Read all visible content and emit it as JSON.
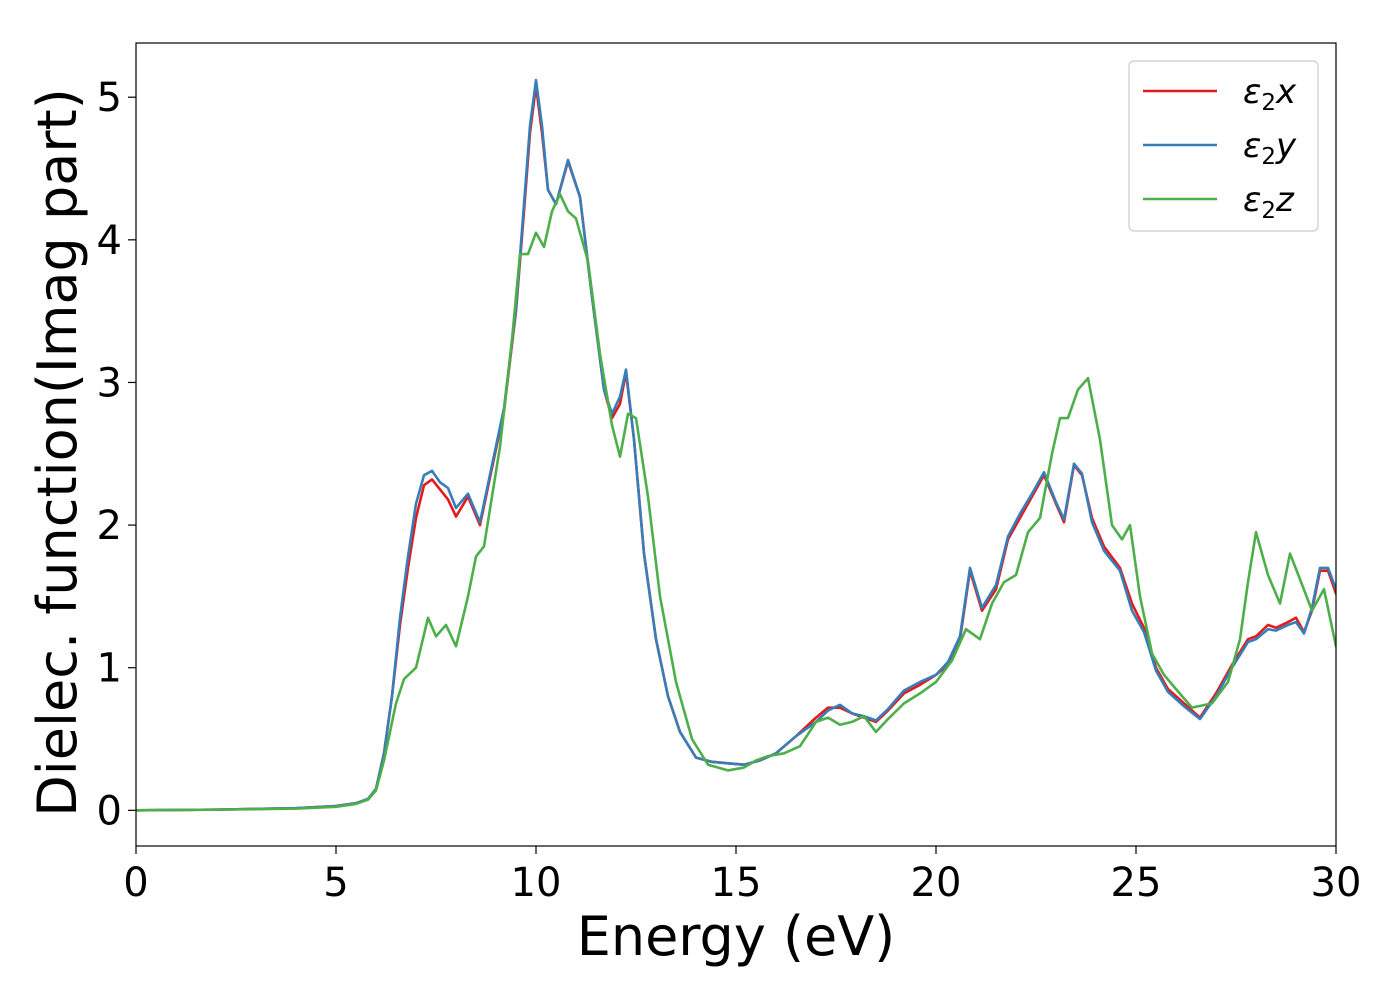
{
  "chart_data": {
    "type": "line",
    "title": "",
    "xlabel": "Energy (eV)",
    "ylabel": "Dielec. function(Imag part)",
    "xlim": [
      0,
      30
    ],
    "ylim": [
      -0.25,
      5.38
    ],
    "xticks": [
      0,
      5,
      10,
      15,
      20,
      25,
      30
    ],
    "yticks": [
      0,
      1,
      2,
      3,
      4,
      5
    ],
    "grid": false,
    "legend_position": "top-right",
    "series": [
      {
        "name": "ε2x",
        "legend_main": "ε",
        "legend_sub": "2",
        "legend_suffix": "x",
        "color": "#e41a1c",
        "x": [
          0,
          2,
          4,
          5,
          5.5,
          5.8,
          6.0,
          6.2,
          6.4,
          6.6,
          6.8,
          7.0,
          7.2,
          7.4,
          7.6,
          7.8,
          8.0,
          8.3,
          8.6,
          8.9,
          9.2,
          9.5,
          9.7,
          9.85,
          10.0,
          10.15,
          10.3,
          10.5,
          10.8,
          11.1,
          11.4,
          11.7,
          11.9,
          12.1,
          12.25,
          12.45,
          12.7,
          13.0,
          13.3,
          13.6,
          14.0,
          14.4,
          14.8,
          15.2,
          15.6,
          16.0,
          16.5,
          17.0,
          17.3,
          17.6,
          17.9,
          18.2,
          18.5,
          18.8,
          19.2,
          19.6,
          20.0,
          20.3,
          20.6,
          20.85,
          21.15,
          21.5,
          21.8,
          22.1,
          22.4,
          22.7,
          23.0,
          23.2,
          23.45,
          23.65,
          23.9,
          24.2,
          24.6,
          24.9,
          25.2,
          25.5,
          25.8,
          26.2,
          26.6,
          27.0,
          27.4,
          27.8,
          28.0,
          28.3,
          28.5,
          28.8,
          29.0,
          29.2,
          29.4,
          29.6,
          29.8,
          30.0
        ],
        "y": [
          0,
          0.005,
          0.015,
          0.03,
          0.05,
          0.08,
          0.15,
          0.4,
          0.8,
          1.3,
          1.7,
          2.05,
          2.28,
          2.32,
          2.25,
          2.18,
          2.06,
          2.2,
          2.0,
          2.4,
          2.8,
          3.5,
          4.2,
          4.75,
          5.08,
          4.75,
          4.35,
          4.25,
          4.55,
          4.3,
          3.6,
          2.95,
          2.75,
          2.85,
          3.07,
          2.6,
          1.8,
          1.2,
          0.8,
          0.55,
          0.37,
          0.34,
          0.33,
          0.32,
          0.35,
          0.4,
          0.52,
          0.65,
          0.72,
          0.72,
          0.68,
          0.65,
          0.62,
          0.7,
          0.82,
          0.88,
          0.95,
          1.02,
          1.2,
          1.68,
          1.4,
          1.55,
          1.9,
          2.05,
          2.2,
          2.35,
          2.15,
          2.02,
          2.42,
          2.35,
          2.05,
          1.85,
          1.7,
          1.45,
          1.28,
          1.0,
          0.85,
          0.75,
          0.65,
          0.82,
          1.02,
          1.2,
          1.22,
          1.3,
          1.28,
          1.32,
          1.35,
          1.25,
          1.4,
          1.68,
          1.68,
          1.52
        ]
      },
      {
        "name": "ε2y",
        "legend_main": "ε",
        "legend_sub": "2",
        "legend_suffix": "y",
        "color": "#377eb8",
        "x": [
          0,
          2,
          4,
          5,
          5.5,
          5.8,
          6.0,
          6.2,
          6.4,
          6.6,
          6.8,
          7.0,
          7.2,
          7.4,
          7.6,
          7.8,
          8.0,
          8.3,
          8.6,
          8.9,
          9.2,
          9.5,
          9.7,
          9.85,
          10.0,
          10.15,
          10.3,
          10.5,
          10.8,
          11.1,
          11.4,
          11.7,
          11.9,
          12.1,
          12.25,
          12.45,
          12.7,
          13.0,
          13.3,
          13.6,
          14.0,
          14.4,
          14.8,
          15.2,
          15.6,
          16.0,
          16.5,
          17.0,
          17.3,
          17.6,
          17.9,
          18.2,
          18.5,
          18.8,
          19.2,
          19.6,
          20.0,
          20.3,
          20.6,
          20.85,
          21.15,
          21.5,
          21.8,
          22.1,
          22.4,
          22.7,
          23.0,
          23.2,
          23.45,
          23.65,
          23.9,
          24.2,
          24.6,
          24.9,
          25.2,
          25.5,
          25.8,
          26.2,
          26.6,
          27.0,
          27.4,
          27.8,
          28.0,
          28.3,
          28.5,
          28.8,
          29.0,
          29.2,
          29.4,
          29.6,
          29.8,
          30.0
        ],
        "y": [
          0,
          0.005,
          0.015,
          0.03,
          0.05,
          0.08,
          0.15,
          0.4,
          0.8,
          1.35,
          1.78,
          2.15,
          2.35,
          2.38,
          2.3,
          2.26,
          2.12,
          2.22,
          2.02,
          2.42,
          2.82,
          3.52,
          4.25,
          4.8,
          5.12,
          4.8,
          4.35,
          4.25,
          4.56,
          4.3,
          3.6,
          2.95,
          2.78,
          2.9,
          3.09,
          2.6,
          1.8,
          1.2,
          0.8,
          0.55,
          0.37,
          0.34,
          0.33,
          0.32,
          0.35,
          0.4,
          0.52,
          0.62,
          0.7,
          0.74,
          0.68,
          0.66,
          0.63,
          0.71,
          0.84,
          0.9,
          0.95,
          1.04,
          1.22,
          1.7,
          1.42,
          1.58,
          1.92,
          2.08,
          2.22,
          2.37,
          2.16,
          2.04,
          2.43,
          2.36,
          2.02,
          1.82,
          1.68,
          1.4,
          1.25,
          0.98,
          0.83,
          0.73,
          0.64,
          0.8,
          1.0,
          1.18,
          1.2,
          1.27,
          1.26,
          1.3,
          1.32,
          1.24,
          1.42,
          1.7,
          1.7,
          1.55
        ]
      },
      {
        "name": "ε2z",
        "legend_main": "ε",
        "legend_sub": "2",
        "legend_suffix": "z",
        "color": "#4daf4a",
        "x": [
          0,
          2,
          4,
          5,
          5.5,
          5.8,
          6.0,
          6.2,
          6.5,
          6.7,
          7.0,
          7.3,
          7.5,
          7.75,
          8.0,
          8.3,
          8.5,
          8.7,
          8.9,
          9.1,
          9.4,
          9.6,
          9.8,
          10.0,
          10.2,
          10.4,
          10.6,
          10.8,
          11.0,
          11.3,
          11.6,
          11.9,
          12.1,
          12.3,
          12.5,
          12.8,
          13.1,
          13.5,
          13.9,
          14.3,
          14.8,
          15.2,
          15.5,
          15.8,
          16.2,
          16.6,
          17.0,
          17.3,
          17.6,
          17.9,
          18.2,
          18.5,
          18.8,
          19.2,
          19.6,
          20.0,
          20.4,
          20.75,
          21.1,
          21.4,
          21.7,
          22.0,
          22.3,
          22.6,
          22.9,
          23.1,
          23.3,
          23.55,
          23.8,
          24.1,
          24.4,
          24.65,
          24.85,
          25.1,
          25.4,
          25.7,
          26.0,
          26.4,
          26.9,
          27.3,
          27.6,
          27.8,
          28.0,
          28.3,
          28.6,
          28.85,
          29.1,
          29.4,
          29.7,
          30.0
        ],
        "y": [
          0,
          0.005,
          0.012,
          0.025,
          0.045,
          0.075,
          0.14,
          0.35,
          0.75,
          0.92,
          1.0,
          1.35,
          1.22,
          1.3,
          1.15,
          1.5,
          1.78,
          1.85,
          2.2,
          2.55,
          3.3,
          3.9,
          3.9,
          4.05,
          3.95,
          4.2,
          4.32,
          4.2,
          4.15,
          3.85,
          3.2,
          2.7,
          2.48,
          2.78,
          2.75,
          2.2,
          1.5,
          0.9,
          0.5,
          0.32,
          0.28,
          0.3,
          0.35,
          0.38,
          0.4,
          0.45,
          0.62,
          0.65,
          0.6,
          0.62,
          0.66,
          0.55,
          0.64,
          0.75,
          0.82,
          0.9,
          1.05,
          1.27,
          1.2,
          1.45,
          1.6,
          1.65,
          1.95,
          2.05,
          2.5,
          2.75,
          2.75,
          2.95,
          3.03,
          2.6,
          2.0,
          1.9,
          2.0,
          1.5,
          1.1,
          0.95,
          0.85,
          0.72,
          0.75,
          0.9,
          1.2,
          1.6,
          1.95,
          1.65,
          1.45,
          1.8,
          1.62,
          1.4,
          1.55,
          1.15
        ]
      }
    ]
  }
}
